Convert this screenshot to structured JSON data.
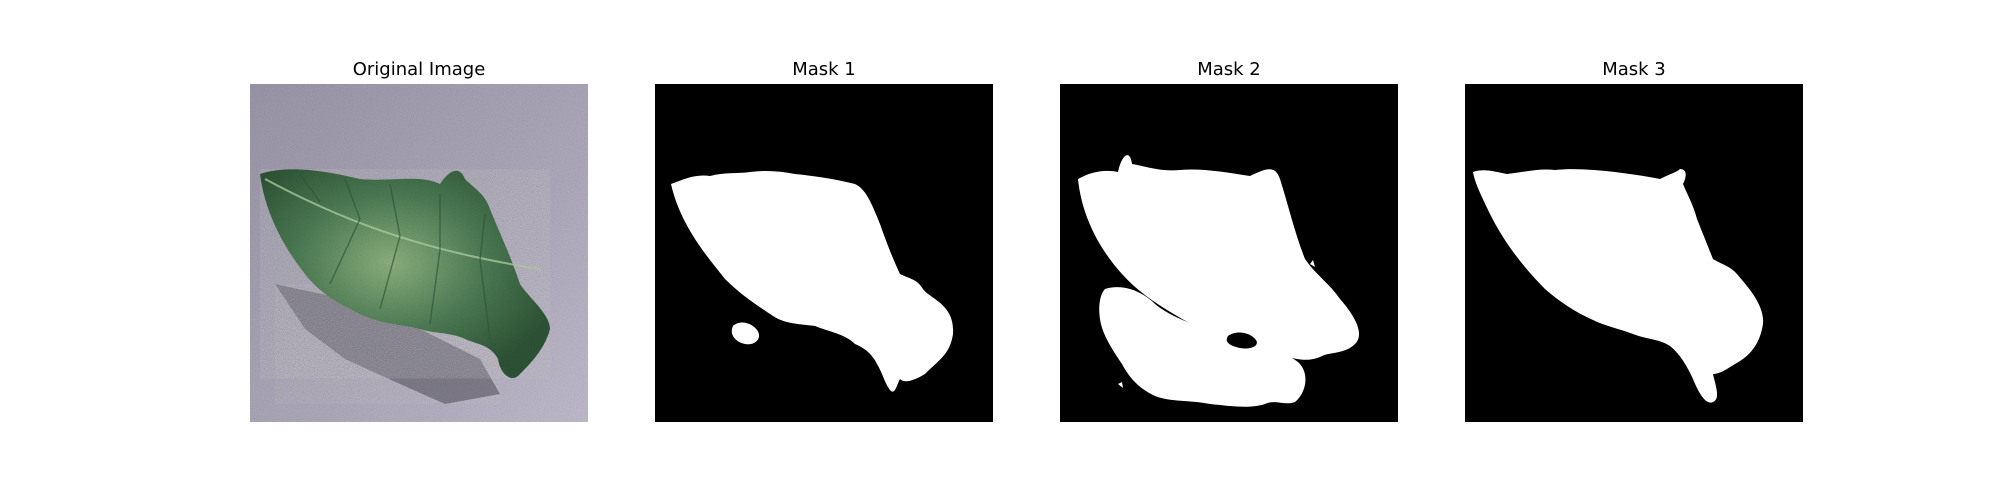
{
  "figure": {
    "panels": [
      {
        "title": "Original Image",
        "content": "leaf-photo"
      },
      {
        "title": "Mask 1",
        "content": "binary-mask"
      },
      {
        "title": "Mask 2",
        "content": "binary-mask"
      },
      {
        "title": "Mask 3",
        "content": "binary-mask"
      }
    ]
  },
  "colors": {
    "mask_foreground": "#ffffff",
    "mask_background": "#000000",
    "photo_background": "#a7a2b4",
    "leaf_main": "#4d7d55",
    "leaf_light": "#8fb481",
    "leaf_dark": "#2f5537",
    "shadow": "#6f6c78"
  }
}
